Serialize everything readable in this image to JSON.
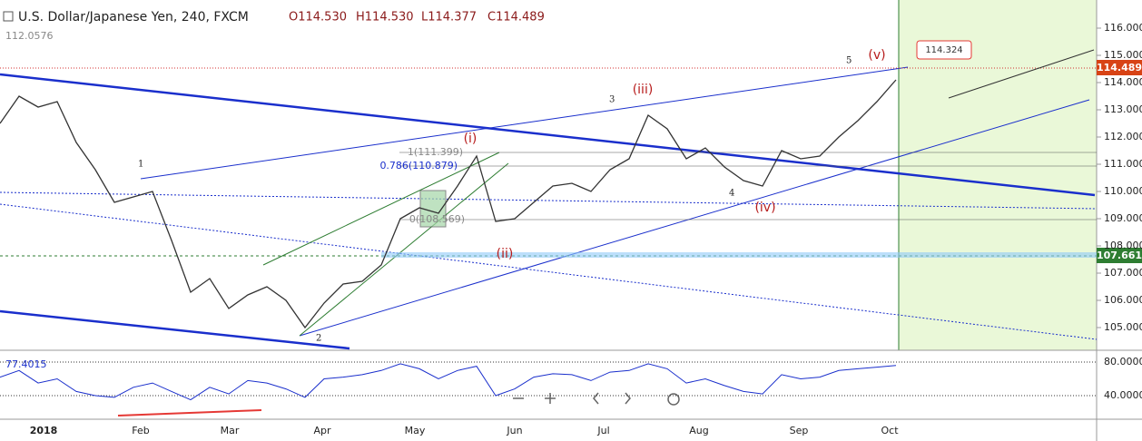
{
  "header": {
    "symbol": "U.S. Dollar/Japanese Yen, 240, FXCM",
    "open": "O114.530",
    "high": "H114.530",
    "low": "L114.377",
    "close": "C114.489",
    "ma_value": "112.0576"
  },
  "price_axis": {
    "ticks": [
      116,
      115,
      114,
      113,
      112,
      111,
      110,
      109,
      108,
      107,
      106,
      105
    ],
    "tick_labels": [
      "116.000",
      "115.000",
      "114.000",
      "113.000",
      "112.000",
      "111.000",
      "110.000",
      "109.000",
      "108.000",
      "107.000",
      "106.000",
      "105.000"
    ],
    "last_price": "114.489",
    "level": "107.661"
  },
  "time_axis": {
    "labels": [
      "2018",
      "Feb",
      "Mar",
      "Apr",
      "May",
      "Jun",
      "Jul",
      "Aug",
      "Sep",
      "Oct"
    ]
  },
  "waves": {
    "major": [
      "(i)",
      "(ii)",
      "(iii)",
      "(iv)",
      "(v)"
    ],
    "minor": [
      "1",
      "2",
      "3",
      "4",
      "5"
    ]
  },
  "fib": [
    "1(111.399)",
    "0.786(110.879)",
    "0(108.569)"
  ],
  "callout": "114.324",
  "price_series": [
    112.5,
    113.5,
    113.1,
    113.3,
    111.8,
    110.8,
    109.6,
    109.8,
    110.0,
    108.2,
    106.3,
    106.8,
    105.7,
    106.2,
    106.5,
    106.0,
    105.0,
    105.9,
    106.6,
    106.7,
    107.3,
    109.0,
    109.4,
    109.2,
    110.2,
    111.3,
    108.9,
    109.0,
    109.6,
    110.2,
    110.3,
    110.0,
    110.8,
    111.2,
    112.8,
    112.3,
    111.2,
    111.6,
    110.9,
    110.4,
    110.2,
    111.5,
    111.2,
    111.3,
    112.0,
    112.6,
    113.3,
    114.1
  ],
  "rsi": {
    "current": "77.4015",
    "ticks": [
      80,
      40
    ],
    "tick_labels": [
      "80.0000",
      "40.0000"
    ],
    "values": [
      62,
      70,
      55,
      60,
      45,
      40,
      38,
      50,
      55,
      45,
      35,
      50,
      42,
      58,
      55,
      48,
      38,
      60,
      62,
      65,
      70,
      78,
      72,
      60,
      70,
      75,
      40,
      48,
      62,
      66,
      65,
      58,
      68,
      70,
      78,
      72,
      55,
      60,
      52,
      45,
      42,
      65,
      60,
      62,
      70,
      72,
      74,
      76
    ]
  }
}
